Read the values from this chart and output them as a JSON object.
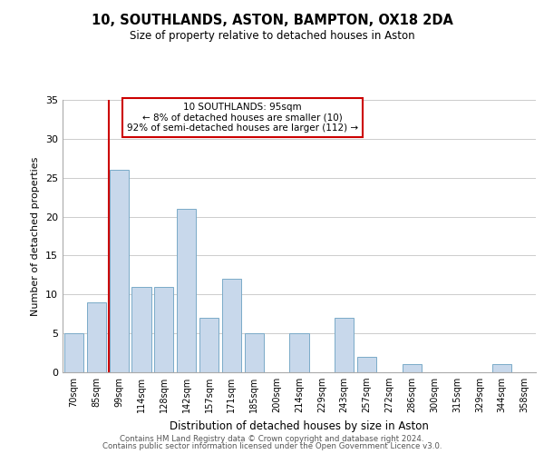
{
  "title": "10, SOUTHLANDS, ASTON, BAMPTON, OX18 2DA",
  "subtitle": "Size of property relative to detached houses in Aston",
  "xlabel": "Distribution of detached houses by size in Aston",
  "ylabel": "Number of detached properties",
  "bar_color": "#c8d8eb",
  "bar_edge_color": "#7aaac8",
  "bins": [
    "70sqm",
    "85sqm",
    "99sqm",
    "114sqm",
    "128sqm",
    "142sqm",
    "157sqm",
    "171sqm",
    "185sqm",
    "200sqm",
    "214sqm",
    "229sqm",
    "243sqm",
    "257sqm",
    "272sqm",
    "286sqm",
    "300sqm",
    "315sqm",
    "329sqm",
    "344sqm",
    "358sqm"
  ],
  "values": [
    5,
    9,
    26,
    11,
    11,
    21,
    7,
    12,
    5,
    0,
    5,
    0,
    7,
    2,
    0,
    1,
    0,
    0,
    0,
    1,
    0
  ],
  "ylim": [
    0,
    35
  ],
  "yticks": [
    0,
    5,
    10,
    15,
    20,
    25,
    30,
    35
  ],
  "property_line_label": "10 SOUTHLANDS: 95sqm",
  "annotation_line1": "← 8% of detached houses are smaller (10)",
  "annotation_line2": "92% of semi-detached houses are larger (112) →",
  "red_line_color": "#cc0000",
  "footer1": "Contains HM Land Registry data © Crown copyright and database right 2024.",
  "footer2": "Contains public sector information licensed under the Open Government Licence v3.0.",
  "background_color": "#ffffff",
  "grid_color": "#cccccc"
}
